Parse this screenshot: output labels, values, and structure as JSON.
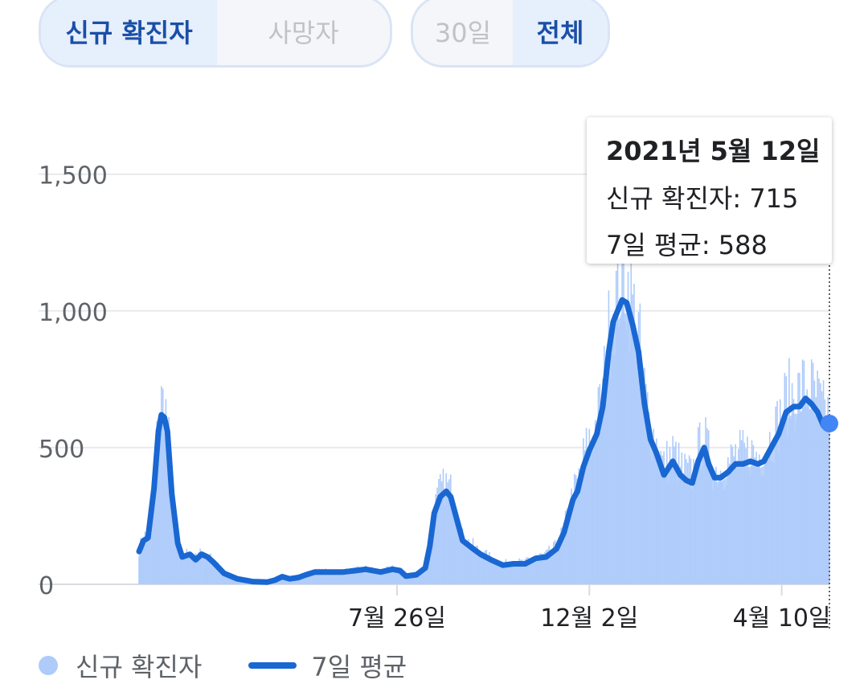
{
  "metric_toggle": {
    "options": [
      "신규 확진자",
      "사망자"
    ],
    "selected": "신규 확진자"
  },
  "range_toggle": {
    "options": [
      "30일",
      "전체"
    ],
    "selected": "전체"
  },
  "tooltip": {
    "date": "2021년 5월 12일",
    "new_cases_label": "신규 확진자: 715",
    "avg_label": "7일 평균: 588"
  },
  "legend": {
    "daily": "신규 확진자",
    "avg": "7일 평균"
  },
  "colors": {
    "bar": "#aecbfa",
    "line": "#1967d2",
    "grid": "#e8eaed",
    "axis_text": "#5f6368"
  },
  "chart_data": {
    "type": "area",
    "x_start": "2020-02-04",
    "x_end": "2021-05-12",
    "xticks": [
      {
        "date": "2020-07-26",
        "label": "7월 26일"
      },
      {
        "date": "2020-12-02",
        "label": "12월 2일"
      },
      {
        "date": "2021-04-10",
        "label": "4월 10일"
      }
    ],
    "ylim": [
      0,
      1700
    ],
    "yticks": [
      {
        "value": 0,
        "label": "0"
      },
      {
        "value": 500,
        "label": "500"
      },
      {
        "value": 1000,
        "label": "1,000"
      },
      {
        "value": 1500,
        "label": "1,500"
      }
    ],
    "grid": true,
    "highlight": {
      "date": "2021-05-12",
      "new_cases": 715,
      "avg": 588
    },
    "series": [
      {
        "name": "7일 평균",
        "points": [
          [
            "2020-02-04",
            120
          ],
          [
            "2020-02-07",
            160
          ],
          [
            "2020-02-10",
            170
          ],
          [
            "2020-02-14",
            350
          ],
          [
            "2020-02-17",
            560
          ],
          [
            "2020-02-19",
            620
          ],
          [
            "2020-02-21",
            610
          ],
          [
            "2020-02-23",
            560
          ],
          [
            "2020-02-26",
            330
          ],
          [
            "2020-03-01",
            150
          ],
          [
            "2020-03-04",
            100
          ],
          [
            "2020-03-09",
            110
          ],
          [
            "2020-03-13",
            90
          ],
          [
            "2020-03-17",
            110
          ],
          [
            "2020-03-21",
            100
          ],
          [
            "2020-03-25",
            80
          ],
          [
            "2020-04-01",
            40
          ],
          [
            "2020-04-10",
            20
          ],
          [
            "2020-04-20",
            10
          ],
          [
            "2020-04-30",
            8
          ],
          [
            "2020-05-05",
            15
          ],
          [
            "2020-05-10",
            28
          ],
          [
            "2020-05-15",
            20
          ],
          [
            "2020-05-21",
            25
          ],
          [
            "2020-05-26",
            35
          ],
          [
            "2020-06-01",
            45
          ],
          [
            "2020-06-10",
            45
          ],
          [
            "2020-06-20",
            45
          ],
          [
            "2020-06-28",
            50
          ],
          [
            "2020-07-05",
            55
          ],
          [
            "2020-07-15",
            45
          ],
          [
            "2020-07-23",
            55
          ],
          [
            "2020-07-28",
            50
          ],
          [
            "2020-08-01",
            30
          ],
          [
            "2020-08-08",
            35
          ],
          [
            "2020-08-14",
            60
          ],
          [
            "2020-08-17",
            140
          ],
          [
            "2020-08-20",
            260
          ],
          [
            "2020-08-24",
            320
          ],
          [
            "2020-08-28",
            340
          ],
          [
            "2020-08-31",
            320
          ],
          [
            "2020-09-04",
            240
          ],
          [
            "2020-09-08",
            160
          ],
          [
            "2020-09-15",
            130
          ],
          [
            "2020-09-20",
            110
          ],
          [
            "2020-09-27",
            90
          ],
          [
            "2020-10-05",
            70
          ],
          [
            "2020-10-12",
            75
          ],
          [
            "2020-10-20",
            75
          ],
          [
            "2020-10-27",
            95
          ],
          [
            "2020-11-03",
            100
          ],
          [
            "2020-11-10",
            130
          ],
          [
            "2020-11-15",
            190
          ],
          [
            "2020-11-18",
            250
          ],
          [
            "2020-11-21",
            310
          ],
          [
            "2020-11-24",
            340
          ],
          [
            "2020-11-28",
            430
          ],
          [
            "2020-12-02",
            490
          ],
          [
            "2020-12-07",
            550
          ],
          [
            "2020-12-11",
            650
          ],
          [
            "2020-12-15",
            850
          ],
          [
            "2020-12-18",
            960
          ],
          [
            "2020-12-21",
            1000
          ],
          [
            "2020-12-24",
            1040
          ],
          [
            "2020-12-27",
            1030
          ],
          [
            "2020-12-31",
            950
          ],
          [
            "2021-01-04",
            850
          ],
          [
            "2021-01-08",
            660
          ],
          [
            "2021-01-12",
            530
          ],
          [
            "2021-01-16",
            480
          ],
          [
            "2021-01-21",
            400
          ],
          [
            "2021-01-27",
            450
          ],
          [
            "2021-02-01",
            400
          ],
          [
            "2021-02-05",
            380
          ],
          [
            "2021-02-09",
            370
          ],
          [
            "2021-02-13",
            450
          ],
          [
            "2021-02-17",
            500
          ],
          [
            "2021-02-20",
            440
          ],
          [
            "2021-02-24",
            390
          ],
          [
            "2021-02-28",
            390
          ],
          [
            "2021-03-05",
            410
          ],
          [
            "2021-03-10",
            440
          ],
          [
            "2021-03-15",
            440
          ],
          [
            "2021-03-20",
            450
          ],
          [
            "2021-03-25",
            440
          ],
          [
            "2021-03-29",
            450
          ],
          [
            "2021-04-03",
            500
          ],
          [
            "2021-04-08",
            550
          ],
          [
            "2021-04-13",
            630
          ],
          [
            "2021-04-18",
            650
          ],
          [
            "2021-04-22",
            650
          ],
          [
            "2021-04-26",
            680
          ],
          [
            "2021-04-30",
            660
          ],
          [
            "2021-05-04",
            630
          ],
          [
            "2021-05-08",
            580
          ],
          [
            "2021-05-12",
            588
          ]
        ]
      }
    ]
  }
}
